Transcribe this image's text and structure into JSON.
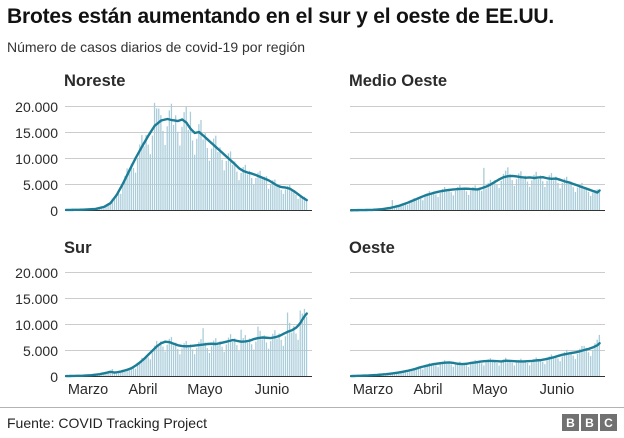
{
  "header": {
    "title": "Brotes están aumentando en el sur y el oeste de EE.UU.",
    "subtitle": "Número de casos diarios de covid-19 por región"
  },
  "footer": {
    "source": "Fuente: COVID Tracking Project",
    "logo": [
      "B",
      "B",
      "C"
    ]
  },
  "colors": {
    "bar": "#a8ccda",
    "line": "#1c7d97",
    "grid": "#cccccc",
    "baseline": "#333333",
    "text": "#2b2b2b",
    "logo_bg": "#717171"
  },
  "chart_config": {
    "type": "bar",
    "note": "small multiples: daily-case bars with 7-day average line, shared scale",
    "ylim": [
      0,
      20000
    ],
    "y_ticks": [
      {
        "value": 20000,
        "label": "20.000"
      },
      {
        "value": 15000,
        "label": "15.000"
      },
      {
        "value": 10000,
        "label": "10.000"
      },
      {
        "value": 5000,
        "label": "5.000"
      },
      {
        "value": 0,
        "label": "0"
      }
    ],
    "x_tick_labels": [
      "Marzo",
      "Abril",
      "Mayo",
      "Junio"
    ],
    "domain_days": 117,
    "data_days": 115,
    "bar_noise_cycle": [
      1.1,
      1.18,
      0.95,
      1.06,
      0.88,
      0.72,
      0.92
    ],
    "grid": true,
    "legend": "none"
  },
  "chart_data": [
    {
      "title": "Noreste",
      "y_axis_labels": true,
      "month_labels": false,
      "avg_line": [
        [
          0,
          100
        ],
        [
          8,
          150
        ],
        [
          14,
          300
        ],
        [
          18,
          700
        ],
        [
          21,
          1400
        ],
        [
          24,
          3000
        ],
        [
          27,
          5200
        ],
        [
          30,
          7700
        ],
        [
          33,
          10100
        ],
        [
          36,
          12300
        ],
        [
          39,
          14400
        ],
        [
          42,
          16300
        ],
        [
          45,
          17300
        ],
        [
          48,
          17600
        ],
        [
          50,
          17400
        ],
        [
          53,
          17200
        ],
        [
          55,
          17500
        ],
        [
          57,
          16900
        ],
        [
          59,
          15700
        ],
        [
          61,
          14900
        ],
        [
          63,
          15100
        ],
        [
          65,
          14400
        ],
        [
          68,
          13300
        ],
        [
          71,
          12200
        ],
        [
          74,
          11100
        ],
        [
          77,
          10000
        ],
        [
          80,
          8900
        ],
        [
          82,
          8100
        ],
        [
          84,
          7600
        ],
        [
          86,
          7300
        ],
        [
          88,
          7100
        ],
        [
          90,
          6800
        ],
        [
          93,
          6300
        ],
        [
          96,
          5800
        ],
        [
          98,
          5300
        ],
        [
          100,
          4800
        ],
        [
          102,
          4500
        ],
        [
          104,
          4400
        ],
        [
          106,
          4200
        ],
        [
          108,
          3700
        ],
        [
          110,
          3100
        ],
        [
          112,
          2500
        ],
        [
          114,
          2000
        ]
      ],
      "outlier_bars": [
        [
          42,
          20700
        ],
        [
          44,
          19600
        ],
        [
          59,
          19000
        ],
        [
          95,
          6600
        ]
      ]
    },
    {
      "title": "Medio Oeste",
      "y_axis_labels": false,
      "month_labels": false,
      "avg_line": [
        [
          0,
          50
        ],
        [
          10,
          120
        ],
        [
          14,
          250
        ],
        [
          18,
          500
        ],
        [
          22,
          900
        ],
        [
          26,
          1500
        ],
        [
          30,
          2200
        ],
        [
          34,
          2900
        ],
        [
          38,
          3400
        ],
        [
          41,
          3700
        ],
        [
          44,
          3900
        ],
        [
          47,
          4050
        ],
        [
          50,
          4150
        ],
        [
          53,
          4200
        ],
        [
          56,
          4100
        ],
        [
          58,
          4050
        ],
        [
          60,
          4300
        ],
        [
          62,
          4600
        ],
        [
          64,
          5000
        ],
        [
          66,
          5500
        ],
        [
          68,
          6000
        ],
        [
          70,
          6400
        ],
        [
          72,
          6600
        ],
        [
          74,
          6650
        ],
        [
          76,
          6550
        ],
        [
          78,
          6400
        ],
        [
          80,
          6300
        ],
        [
          82,
          6350
        ],
        [
          84,
          6250
        ],
        [
          86,
          6350
        ],
        [
          88,
          6400
        ],
        [
          90,
          6200
        ],
        [
          92,
          6100
        ],
        [
          94,
          6150
        ],
        [
          96,
          5900
        ],
        [
          98,
          5600
        ],
        [
          100,
          5400
        ],
        [
          102,
          5100
        ],
        [
          104,
          4800
        ],
        [
          106,
          4500
        ],
        [
          108,
          4200
        ],
        [
          110,
          3900
        ],
        [
          112,
          3600
        ],
        [
          113,
          3450
        ],
        [
          114,
          3850
        ]
      ],
      "outlier_bars": [
        [
          19,
          2000
        ],
        [
          61,
          8200
        ],
        [
          72,
          8300
        ]
      ]
    },
    {
      "title": "Sur",
      "y_axis_labels": true,
      "month_labels": true,
      "avg_line": [
        [
          0,
          80
        ],
        [
          8,
          150
        ],
        [
          12,
          250
        ],
        [
          16,
          450
        ],
        [
          19,
          700
        ],
        [
          21,
          900
        ],
        [
          23,
          750
        ],
        [
          26,
          950
        ],
        [
          29,
          1300
        ],
        [
          31,
          1600
        ],
        [
          33,
          2100
        ],
        [
          35,
          2700
        ],
        [
          37,
          3400
        ],
        [
          39,
          4200
        ],
        [
          41,
          5000
        ],
        [
          43,
          5800
        ],
        [
          45,
          6400
        ],
        [
          47,
          6700
        ],
        [
          49,
          6600
        ],
        [
          51,
          6300
        ],
        [
          53,
          6000
        ],
        [
          55,
          5850
        ],
        [
          57,
          5800
        ],
        [
          59,
          5850
        ],
        [
          61,
          5950
        ],
        [
          63,
          6050
        ],
        [
          65,
          6150
        ],
        [
          67,
          6250
        ],
        [
          69,
          6300
        ],
        [
          71,
          6250
        ],
        [
          73,
          6400
        ],
        [
          75,
          6600
        ],
        [
          77,
          6800
        ],
        [
          79,
          7000
        ],
        [
          81,
          6850
        ],
        [
          83,
          6700
        ],
        [
          85,
          6750
        ],
        [
          87,
          6900
        ],
        [
          89,
          7200
        ],
        [
          91,
          7400
        ],
        [
          93,
          7500
        ],
        [
          95,
          7450
        ],
        [
          97,
          7400
        ],
        [
          99,
          7550
        ],
        [
          101,
          7800
        ],
        [
          103,
          8200
        ],
        [
          105,
          8600
        ],
        [
          107,
          8900
        ],
        [
          109,
          9400
        ],
        [
          110,
          9800
        ],
        [
          111,
          10300
        ],
        [
          112,
          11000
        ],
        [
          113,
          11600
        ],
        [
          114,
          12100
        ]
      ],
      "outlier_bars": [
        [
          22,
          1450
        ],
        [
          65,
          9300
        ],
        [
          83,
          9000
        ],
        [
          91,
          9600
        ],
        [
          105,
          12300
        ],
        [
          111,
          12700
        ],
        [
          113,
          13000
        ]
      ]
    },
    {
      "title": "Oeste",
      "y_axis_labels": false,
      "month_labels": true,
      "avg_line": [
        [
          0,
          80
        ],
        [
          8,
          200
        ],
        [
          12,
          300
        ],
        [
          16,
          450
        ],
        [
          20,
          650
        ],
        [
          23,
          850
        ],
        [
          26,
          1100
        ],
        [
          29,
          1400
        ],
        [
          32,
          1800
        ],
        [
          35,
          2100
        ],
        [
          38,
          2400
        ],
        [
          41,
          2550
        ],
        [
          43,
          2650
        ],
        [
          45,
          2700
        ],
        [
          47,
          2600
        ],
        [
          49,
          2450
        ],
        [
          51,
          2400
        ],
        [
          53,
          2450
        ],
        [
          55,
          2600
        ],
        [
          57,
          2700
        ],
        [
          59,
          2850
        ],
        [
          61,
          2950
        ],
        [
          63,
          3000
        ],
        [
          65,
          3000
        ],
        [
          67,
          2950
        ],
        [
          69,
          2900
        ],
        [
          71,
          3050
        ],
        [
          73,
          3000
        ],
        [
          75,
          2950
        ],
        [
          77,
          2900
        ],
        [
          79,
          2900
        ],
        [
          81,
          2950
        ],
        [
          83,
          3000
        ],
        [
          85,
          3100
        ],
        [
          87,
          3150
        ],
        [
          89,
          3300
        ],
        [
          91,
          3500
        ],
        [
          93,
          3700
        ],
        [
          95,
          3950
        ],
        [
          97,
          4200
        ],
        [
          99,
          4350
        ],
        [
          101,
          4500
        ],
        [
          103,
          4650
        ],
        [
          105,
          4850
        ],
        [
          107,
          5100
        ],
        [
          109,
          5300
        ],
        [
          111,
          5600
        ],
        [
          112,
          5800
        ],
        [
          113,
          6000
        ],
        [
          114,
          6400
        ]
      ],
      "outlier_bars": [
        [
          107,
          5900
        ],
        [
          114,
          8000
        ]
      ]
    }
  ]
}
